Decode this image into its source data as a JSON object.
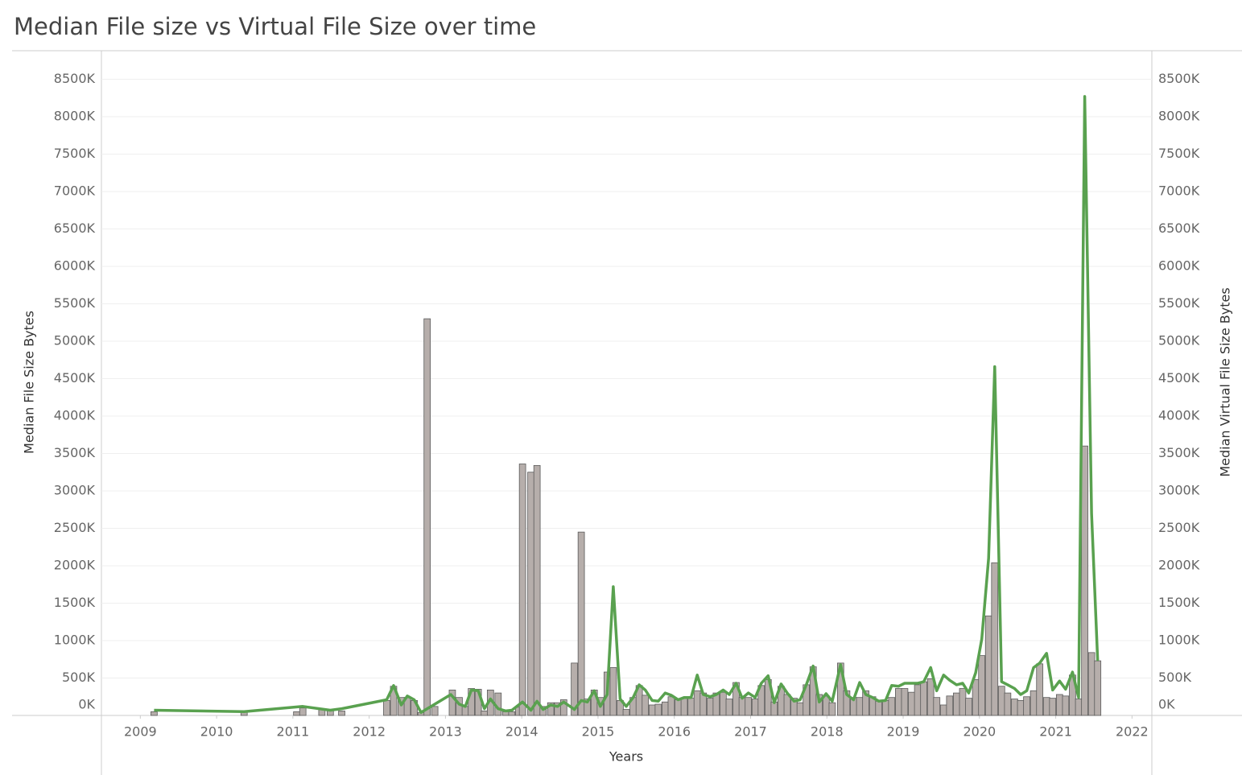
{
  "chart_data": {
    "type": "bar-line",
    "title": "Median File size vs Virtual File Size over time",
    "x_label": "Years",
    "y_label": "Median File Size Bytes",
    "y2_label": "Median Virtual File Size Bytes",
    "xlim": [
      2008.49,
      2022.26
    ],
    "xticks": [
      2009,
      2010,
      2011,
      2012,
      2013,
      2014,
      2015,
      2016,
      2017,
      2018,
      2019,
      2020,
      2021,
      2022
    ],
    "ylim": [
      0,
      8860000
    ],
    "yticks": [
      {
        "value": 0,
        "label": "0K"
      },
      {
        "value": 500000,
        "label": "500K"
      },
      {
        "value": 1000000,
        "label": "1000K"
      },
      {
        "value": 1500000,
        "label": "1500K"
      },
      {
        "value": 2000000,
        "label": "2000K"
      },
      {
        "value": 2500000,
        "label": "2500K"
      },
      {
        "value": 3000000,
        "label": "3000K"
      },
      {
        "value": 3500000,
        "label": "3500K"
      },
      {
        "value": 4000000,
        "label": "4000K"
      },
      {
        "value": 4500000,
        "label": "4500K"
      },
      {
        "value": 5000000,
        "label": "5000K"
      },
      {
        "value": 5500000,
        "label": "5500K"
      },
      {
        "value": 6000000,
        "label": "6000K"
      },
      {
        "value": 6500000,
        "label": "6500K"
      },
      {
        "value": 7000000,
        "label": "7000K"
      },
      {
        "value": 7500000,
        "label": "7500K"
      },
      {
        "value": 8000000,
        "label": "8000K"
      },
      {
        "value": 8500000,
        "label": "8500K"
      }
    ],
    "y2lim": [
      0,
      8860000
    ],
    "y2ticks": [
      {
        "value": 0,
        "label": "0K"
      },
      {
        "value": 500000,
        "label": "500K"
      },
      {
        "value": 1000000,
        "label": "1000K"
      },
      {
        "value": 1500000,
        "label": "1500K"
      },
      {
        "value": 2000000,
        "label": "2000K"
      },
      {
        "value": 2500000,
        "label": "2500K"
      },
      {
        "value": 3000000,
        "label": "3000K"
      },
      {
        "value": 3500000,
        "label": "3500K"
      },
      {
        "value": 4000000,
        "label": "4000K"
      },
      {
        "value": 4500000,
        "label": "4500K"
      },
      {
        "value": 5000000,
        "label": "5000K"
      },
      {
        "value": 5500000,
        "label": "5500K"
      },
      {
        "value": 6000000,
        "label": "6000K"
      },
      {
        "value": 6500000,
        "label": "6500K"
      },
      {
        "value": 7000000,
        "label": "7000K"
      },
      {
        "value": 7500000,
        "label": "7500K"
      },
      {
        "value": 8000000,
        "label": "8000K"
      },
      {
        "value": 8500000,
        "label": "8500K"
      }
    ],
    "grid": true,
    "series": [
      {
        "type": "bar",
        "color": "#b6aeab",
        "x": [
          2009.18,
          2010.36,
          2011.05,
          2011.13,
          2011.38,
          2011.49,
          2011.64,
          2012.23,
          2012.32,
          2012.42,
          2012.5,
          2012.59,
          2012.68,
          2012.76,
          2012.86,
          2013.09,
          2013.18,
          2013.26,
          2013.34,
          2013.43,
          2013.51,
          2013.59,
          2013.69,
          2013.79,
          2013.87,
          2013.96,
          2014.01,
          2014.12,
          2014.2,
          2014.28,
          2014.38,
          2014.47,
          2014.55,
          2014.69,
          2014.78,
          2014.86,
          2014.95,
          2015.03,
          2015.12,
          2015.2,
          2015.29,
          2015.37,
          2015.46,
          2015.54,
          2015.62,
          2015.71,
          2015.79,
          2015.88,
          2015.96,
          2016.05,
          2016.13,
          2016.22,
          2016.3,
          2016.38,
          2016.47,
          2016.55,
          2016.64,
          2016.72,
          2016.81,
          2016.89,
          2016.97,
          2017.06,
          2017.14,
          2017.23,
          2017.31,
          2017.4,
          2017.48,
          2017.57,
          2017.65,
          2017.73,
          2017.82,
          2017.9,
          2017.99,
          2018.07,
          2018.18,
          2018.26,
          2018.35,
          2018.43,
          2018.51,
          2018.6,
          2018.68,
          2018.77,
          2018.85,
          2018.94,
          2019.02,
          2019.11,
          2019.19,
          2019.27,
          2019.36,
          2019.44,
          2019.53,
          2019.61,
          2019.7,
          2019.78,
          2019.86,
          2019.95,
          2020.03,
          2020.12,
          2020.2,
          2020.29,
          2020.37,
          2020.46,
          2020.54,
          2020.62,
          2020.71,
          2020.79,
          2020.88,
          2020.96,
          2021.05,
          2021.13,
          2021.22,
          2021.3,
          2021.38,
          2021.47,
          2021.55
        ],
        "values": [
          50000,
          50000,
          50000,
          100000,
          80000,
          70000,
          60000,
          200000,
          390000,
          240000,
          240000,
          200000,
          40000,
          5300000,
          120000,
          340000,
          240000,
          120000,
          360000,
          350000,
          60000,
          340000,
          300000,
          50000,
          50000,
          110000,
          3360000,
          3250000,
          3340000,
          120000,
          170000,
          170000,
          210000,
          700000,
          2450000,
          220000,
          340000,
          240000,
          580000,
          640000,
          200000,
          80000,
          240000,
          400000,
          270000,
          140000,
          150000,
          180000,
          250000,
          210000,
          230000,
          230000,
          330000,
          300000,
          230000,
          300000,
          310000,
          220000,
          440000,
          240000,
          240000,
          220000,
          400000,
          480000,
          180000,
          390000,
          280000,
          230000,
          170000,
          410000,
          650000,
          280000,
          260000,
          170000,
          700000,
          330000,
          240000,
          240000,
          330000,
          250000,
          190000,
          200000,
          240000,
          360000,
          360000,
          310000,
          410000,
          450000,
          490000,
          240000,
          140000,
          260000,
          300000,
          360000,
          230000,
          480000,
          800000,
          1330000,
          2040000,
          390000,
          300000,
          220000,
          200000,
          250000,
          330000,
          690000,
          240000,
          230000,
          280000,
          260000,
          540000,
          220000,
          3600000,
          840000,
          730000
        ]
      },
      {
        "type": "line",
        "axis": "y2",
        "color": "#59a14f",
        "x": [
          2009.18,
          2010.36,
          2011.13,
          2011.49,
          2011.64,
          2012.23,
          2012.32,
          2012.42,
          2012.5,
          2012.59,
          2012.68,
          2013.07,
          2013.18,
          2013.26,
          2013.34,
          2013.43,
          2013.51,
          2013.59,
          2013.69,
          2013.79,
          2013.87,
          2014.01,
          2014.12,
          2014.2,
          2014.28,
          2014.38,
          2014.47,
          2014.55,
          2014.69,
          2014.78,
          2014.86,
          2014.95,
          2015.03,
          2015.12,
          2015.2,
          2015.29,
          2015.37,
          2015.46,
          2015.54,
          2015.62,
          2015.71,
          2015.79,
          2015.88,
          2015.96,
          2016.05,
          2016.13,
          2016.22,
          2016.3,
          2016.38,
          2016.47,
          2016.55,
          2016.64,
          2016.72,
          2016.81,
          2016.89,
          2016.97,
          2017.06,
          2017.14,
          2017.23,
          2017.31,
          2017.4,
          2017.48,
          2017.57,
          2017.65,
          2017.73,
          2017.82,
          2017.9,
          2017.99,
          2018.07,
          2018.18,
          2018.26,
          2018.35,
          2018.43,
          2018.51,
          2018.6,
          2018.68,
          2018.77,
          2018.85,
          2018.94,
          2019.02,
          2019.11,
          2019.19,
          2019.27,
          2019.36,
          2019.44,
          2019.53,
          2019.61,
          2019.7,
          2019.78,
          2019.86,
          2019.95,
          2020.03,
          2020.12,
          2020.2,
          2020.29,
          2020.37,
          2020.46,
          2020.54,
          2020.62,
          2020.71,
          2020.79,
          2020.88,
          2020.96,
          2021.05,
          2021.13,
          2021.22,
          2021.3,
          2021.38,
          2021.47,
          2021.55
        ],
        "values": [
          70000,
          50000,
          120000,
          70000,
          90000,
          210000,
          400000,
          140000,
          260000,
          210000,
          40000,
          280000,
          150000,
          120000,
          340000,
          330000,
          90000,
          220000,
          90000,
          60000,
          70000,
          180000,
          70000,
          190000,
          80000,
          140000,
          120000,
          180000,
          80000,
          200000,
          180000,
          330000,
          120000,
          280000,
          1720000,
          220000,
          120000,
          240000,
          410000,
          340000,
          200000,
          190000,
          300000,
          270000,
          210000,
          240000,
          240000,
          540000,
          280000,
          250000,
          280000,
          340000,
          280000,
          430000,
          230000,
          300000,
          240000,
          430000,
          530000,
          170000,
          420000,
          300000,
          190000,
          210000,
          410000,
          660000,
          180000,
          290000,
          190000,
          680000,
          280000,
          210000,
          440000,
          280000,
          240000,
          190000,
          200000,
          400000,
          390000,
          430000,
          430000,
          430000,
          450000,
          640000,
          330000,
          540000,
          470000,
          410000,
          430000,
          300000,
          570000,
          1020000,
          2100000,
          4660000,
          450000,
          410000,
          360000,
          280000,
          330000,
          640000,
          700000,
          830000,
          340000,
          460000,
          350000,
          580000,
          240000,
          8270000,
          2700000,
          730000
        ]
      }
    ]
  }
}
